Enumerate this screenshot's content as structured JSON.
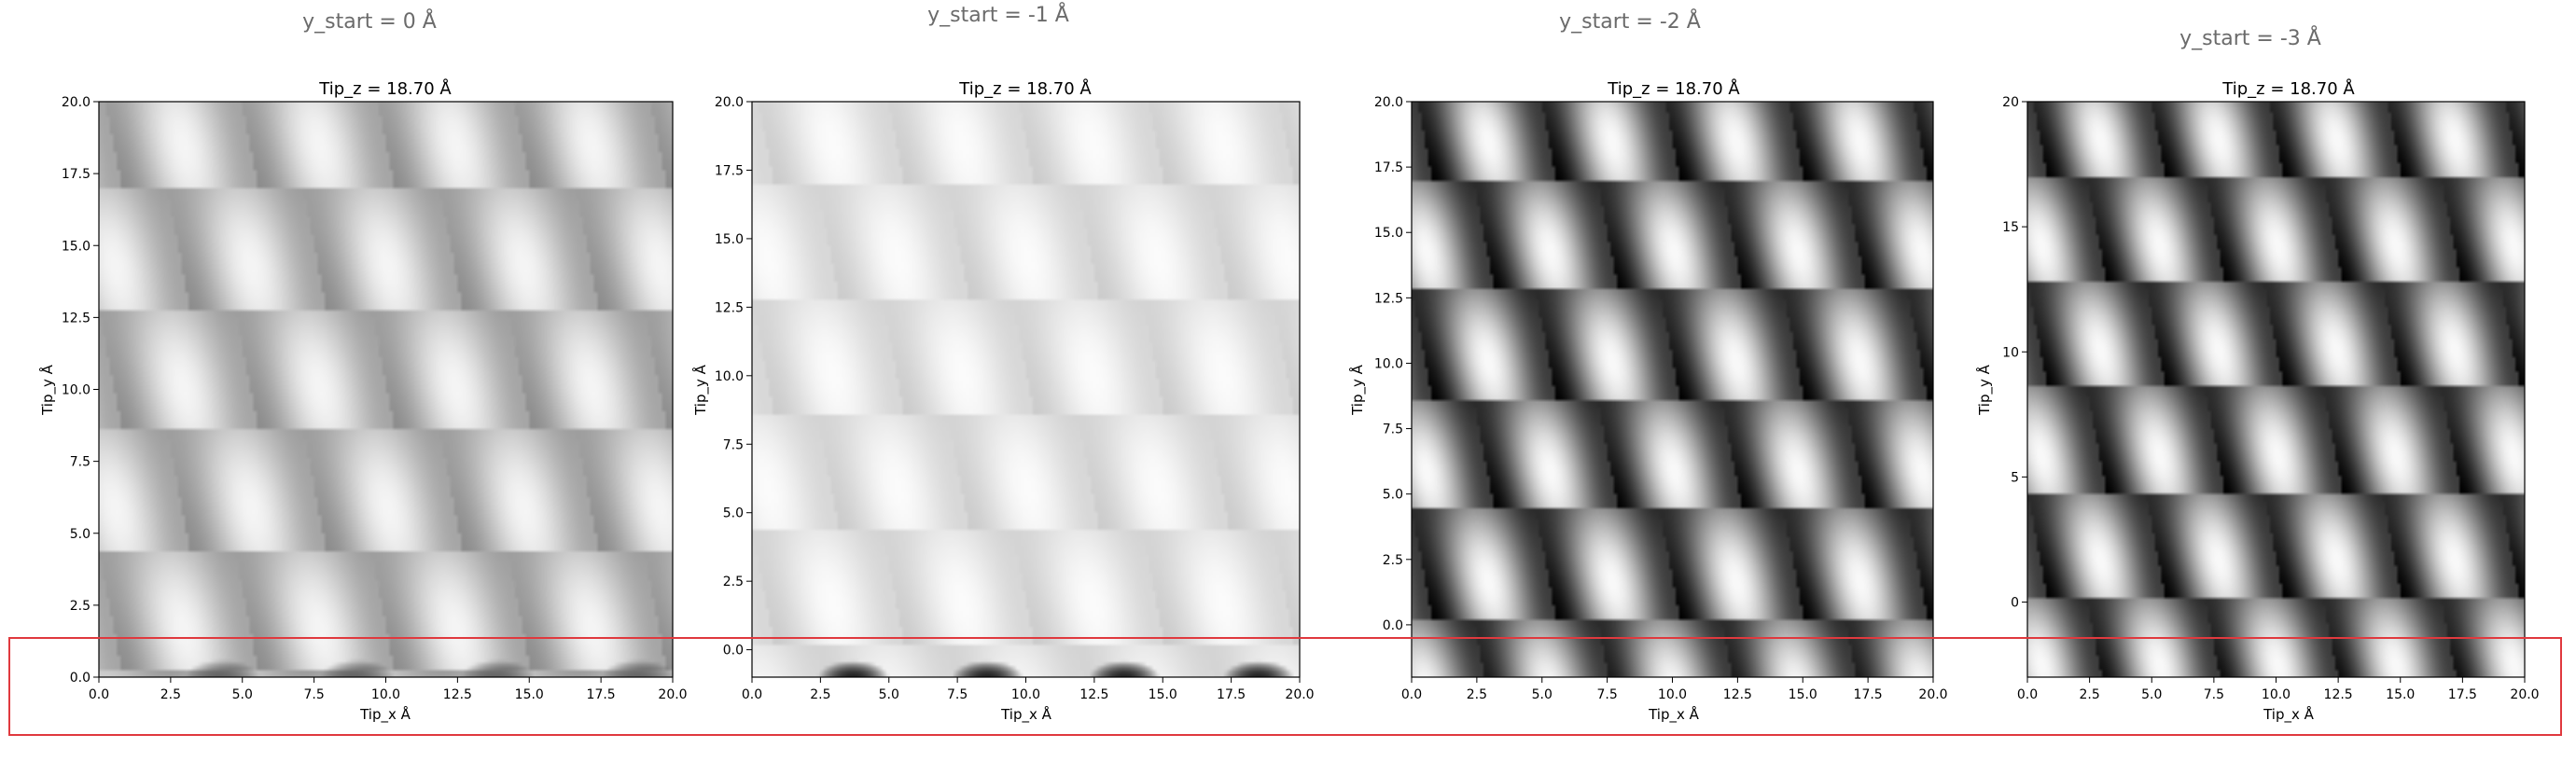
{
  "highlight_box": {
    "color": "#e0393e"
  },
  "chart_data": [
    {
      "type": "heatmap",
      "suptitle": "y_start = 0 Å",
      "title": "Tip_z = 18.70 Å",
      "xlabel": "Tip_x Å",
      "ylabel": "Tip_y Å",
      "xlim": [
        0,
        20
      ],
      "ylim": [
        0,
        20
      ],
      "xticks": [
        0,
        2.5,
        5,
        7.5,
        10,
        12.5,
        15,
        17.5,
        20
      ],
      "xtick_labels": [
        "0.0",
        "2.5",
        "5.0",
        "7.5",
        "10.0",
        "12.5",
        "15.0",
        "17.5",
        "20.0"
      ],
      "yticks": [
        0,
        2.5,
        5,
        7.5,
        10,
        12.5,
        15,
        17.5,
        20
      ],
      "ytick_labels": [
        "0.0",
        "2.5",
        "5.0",
        "7.5",
        "10.0",
        "12.5",
        "15.0",
        "17.5",
        "20.0"
      ],
      "colormap": "gray",
      "intensity_range": [
        0.55,
        0.97
      ],
      "shadow_depth": 0.5,
      "image_data": {
        "lattice_x_period": 4.75,
        "lattice_y_period": 4.2,
        "row_shift": 2.375,
        "y_origin": 0.2,
        "dark_spots_x": [
          4.3,
          9.0,
          13.9,
          18.8
        ],
        "dark_spots_y": 0.0
      }
    },
    {
      "type": "heatmap",
      "suptitle": "y_start = -1 Å",
      "title": "Tip_z = 18.70 Å",
      "xlabel": "Tip_x Å",
      "ylabel": "Tip_y Å",
      "xlim": [
        0,
        20
      ],
      "ylim": [
        -1,
        20
      ],
      "xticks": [
        0,
        2.5,
        5,
        7.5,
        10,
        12.5,
        15,
        17.5,
        20
      ],
      "xtick_labels": [
        "0.0",
        "2.5",
        "5.0",
        "7.5",
        "10.0",
        "12.5",
        "15.0",
        "17.5",
        "20.0"
      ],
      "yticks": [
        0,
        2.5,
        5,
        7.5,
        10,
        12.5,
        15,
        17.5,
        20
      ],
      "ytick_labels": [
        "0.0",
        "2.5",
        "5.0",
        "7.5",
        "10.0",
        "12.5",
        "15.0",
        "17.5",
        "20.0"
      ],
      "colormap": "gray",
      "intensity_range": [
        0.8,
        0.99
      ],
      "shadow_depth": 0.85,
      "image_data": {
        "lattice_x_period": 4.75,
        "lattice_y_period": 4.2,
        "row_shift": 2.375,
        "y_origin": 0.2,
        "dark_spots_x": [
          3.7,
          8.6,
          13.6,
          18.5
        ],
        "dark_spots_y": -1.0
      }
    },
    {
      "type": "heatmap",
      "suptitle": "y_start = -2 Å",
      "title": "Tip_z = 18.70 Å",
      "xlabel": "Tip_x Å",
      "ylabel": "Tip_y Å",
      "xlim": [
        0,
        20
      ],
      "ylim": [
        -2,
        20
      ],
      "xticks": [
        0,
        2.5,
        5,
        7.5,
        10,
        12.5,
        15,
        17.5,
        20
      ],
      "xtick_labels": [
        "0.0",
        "2.5",
        "5.0",
        "7.5",
        "10.0",
        "12.5",
        "15.0",
        "17.5",
        "20.0"
      ],
      "yticks": [
        0,
        2.5,
        5,
        7.5,
        10,
        12.5,
        15,
        17.5,
        20
      ],
      "ytick_labels": [
        "0.0",
        "2.5",
        "5.0",
        "7.5",
        "10.0",
        "12.5",
        "15.0",
        "17.5",
        "20.0"
      ],
      "colormap": "gray",
      "intensity_range": [
        0.0,
        1.0
      ],
      "shadow_depth": 0,
      "image_data": {
        "lattice_x_period": 4.75,
        "lattice_y_period": 4.2,
        "row_shift": 2.375,
        "y_origin": 0.2,
        "dark_spots_x": [],
        "dark_spots_y": -2.0
      }
    },
    {
      "type": "heatmap",
      "suptitle": "y_start = -3 Å",
      "title": "Tip_z = 18.70 Å",
      "xlabel": "Tip_x Å",
      "ylabel": "Tip_y Å",
      "xlim": [
        0,
        20
      ],
      "ylim": [
        -3,
        20
      ],
      "xticks": [
        0,
        2.5,
        5,
        7.5,
        10,
        12.5,
        15,
        17.5,
        20
      ],
      "xtick_labels": [
        "0.0",
        "2.5",
        "5.0",
        "7.5",
        "10.0",
        "12.5",
        "15.0",
        "17.5",
        "20.0"
      ],
      "yticks": [
        0,
        5,
        10,
        15,
        20
      ],
      "ytick_labels": [
        "0",
        "5",
        "10",
        "15",
        "20"
      ],
      "colormap": "gray",
      "intensity_range": [
        0.0,
        1.0
      ],
      "shadow_depth": 0,
      "image_data": {
        "lattice_x_period": 4.75,
        "lattice_y_period": 4.2,
        "row_shift": 2.375,
        "y_origin": 0.2,
        "dark_spots_x": [],
        "dark_spots_y": -3.0
      }
    }
  ]
}
